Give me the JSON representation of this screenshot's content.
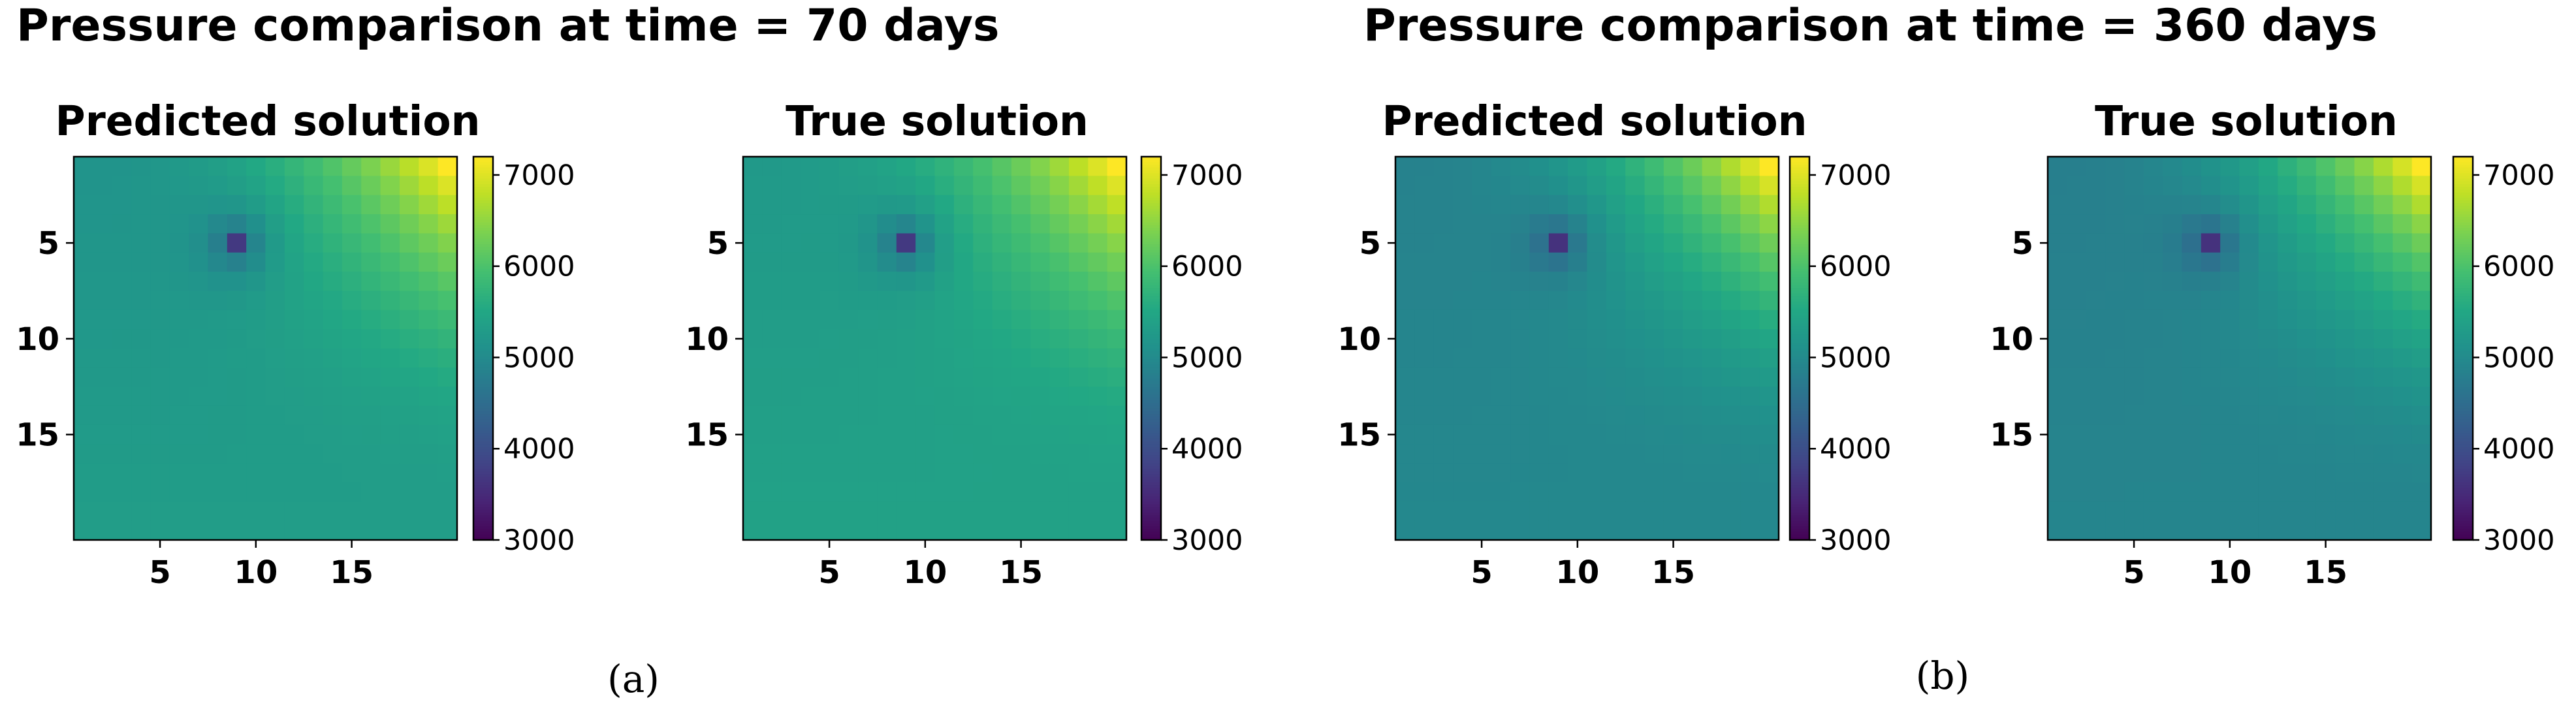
{
  "chart_data": [
    {
      "type": "heatmap",
      "group": "a",
      "group_title": "Pressure comparison at time = 70 days",
      "panel_label": "(a)",
      "time_days": 70,
      "panels": [
        {
          "title": "Predicted solution",
          "grid_size": [
            20,
            20
          ],
          "well_cell": {
            "row": 4,
            "col": 8,
            "value": 3700
          },
          "base_pressure": 5150,
          "bottom_edge_pressure": 5320,
          "top_right_pressure": 7200,
          "xticks": [
            5,
            10,
            15
          ],
          "yticks": [
            5,
            10,
            15
          ],
          "colorbar": {
            "range": [
              3000,
              7200
            ],
            "ticks": [
              3000,
              4000,
              5000,
              6000,
              7000
            ],
            "colormap": "viridis"
          }
        },
        {
          "title": "True solution",
          "grid_size": [
            20,
            20
          ],
          "well_cell": {
            "row": 4,
            "col": 8,
            "value": 3700
          },
          "base_pressure": 5250,
          "bottom_edge_pressure": 5400,
          "top_right_pressure": 7200,
          "xticks": [
            5,
            10,
            15
          ],
          "yticks": [
            5,
            10,
            15
          ],
          "colorbar": {
            "range": [
              3000,
              7200
            ],
            "ticks": [
              3000,
              4000,
              5000,
              6000,
              7000
            ],
            "colormap": "viridis"
          }
        }
      ]
    },
    {
      "type": "heatmap",
      "group": "b",
      "group_title": "Pressure comparison at time = 360 days",
      "panel_label": "(b)",
      "time_days": 360,
      "panels": [
        {
          "title": "Predicted solution",
          "grid_size": [
            20,
            20
          ],
          "well_cell": {
            "row": 4,
            "col": 8,
            "value": 3600
          },
          "base_pressure": 4850,
          "bottom_edge_pressure": 4950,
          "top_right_pressure": 7200,
          "xticks": [
            5,
            10,
            15
          ],
          "yticks": [
            5,
            10,
            15
          ],
          "colorbar": {
            "range": [
              3000,
              7200
            ],
            "ticks": [
              3000,
              4000,
              5000,
              6000,
              7000
            ],
            "colormap": "viridis"
          }
        },
        {
          "title": "True solution",
          "grid_size": [
            20,
            20
          ],
          "well_cell": {
            "row": 4,
            "col": 8,
            "value": 3600
          },
          "base_pressure": 4800,
          "bottom_edge_pressure": 4900,
          "top_right_pressure": 7200,
          "xticks": [
            5,
            10,
            15
          ],
          "yticks": [
            5,
            10,
            15
          ],
          "colorbar": {
            "range": [
              3000,
              7200
            ],
            "ticks": [
              3000,
              4000,
              5000,
              6000,
              7000
            ],
            "colormap": "viridis"
          }
        }
      ]
    }
  ]
}
